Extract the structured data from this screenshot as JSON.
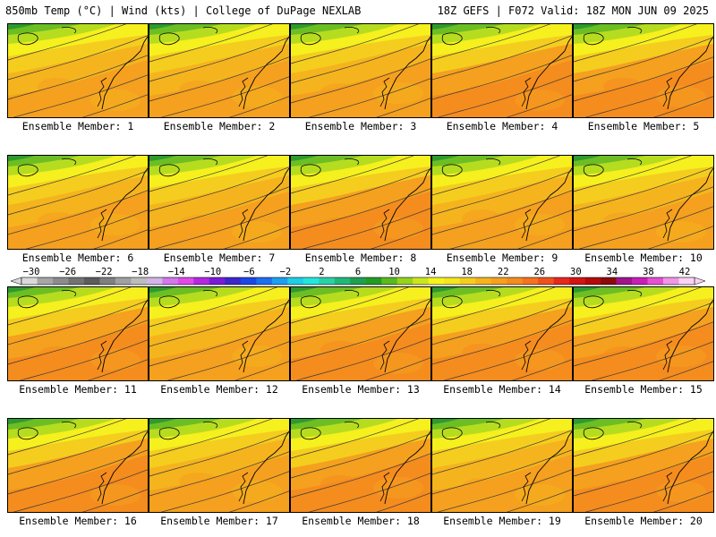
{
  "header": {
    "left": "850mb Temp (°C) | Wind (kts) | College of DuPage NEXLAB",
    "right": "18Z GEFS | F072 Valid: 18Z MON JUN 09 2025"
  },
  "caption_prefix": "Ensemble Member:",
  "members": [
    {
      "id": "1",
      "tint": "mid"
    },
    {
      "id": "2",
      "tint": "mid"
    },
    {
      "id": "3",
      "tint": "mid"
    },
    {
      "id": "4",
      "tint": "warm"
    },
    {
      "id": "5",
      "tint": "warm"
    },
    {
      "id": "6",
      "tint": "mid"
    },
    {
      "id": "7",
      "tint": "mid"
    },
    {
      "id": "8",
      "tint": "warm"
    },
    {
      "id": "9",
      "tint": "mid"
    },
    {
      "id": "10",
      "tint": "mid"
    },
    {
      "id": "11",
      "tint": "warm"
    },
    {
      "id": "12",
      "tint": "mid"
    },
    {
      "id": "13",
      "tint": "warm"
    },
    {
      "id": "14",
      "tint": "warm"
    },
    {
      "id": "15",
      "tint": "warm"
    },
    {
      "id": "16",
      "tint": "warm"
    },
    {
      "id": "17",
      "tint": "mid"
    },
    {
      "id": "18",
      "tint": "warm"
    },
    {
      "id": "19",
      "tint": "mid"
    },
    {
      "id": "20",
      "tint": "warm"
    }
  ],
  "colorbar": {
    "ticks": [
      "−30",
      "−26",
      "−22",
      "−18",
      "−14",
      "−10",
      "−6",
      "−2",
      "2",
      "6",
      "10",
      "14",
      "18",
      "22",
      "26",
      "30",
      "34",
      "38",
      "42"
    ],
    "colors": [
      "#d9d9d9",
      "#a6a6a6",
      "#8c8c8c",
      "#737373",
      "#5c5c5c",
      "#808080",
      "#a0a0a0",
      "#bcbcbc",
      "#d2b4e8",
      "#d278e8",
      "#e04ae8",
      "#b429e0",
      "#7a1cd6",
      "#3c28c8",
      "#1c46e6",
      "#1e6ef0",
      "#1e9ef0",
      "#1ecde6",
      "#23e6dc",
      "#2ad0a8",
      "#20b878",
      "#1ea050",
      "#239c23",
      "#5aba1e",
      "#96d21e",
      "#cbe61e",
      "#f5f51e",
      "#f5e61e",
      "#f5cd1e",
      "#f5b41e",
      "#f5a01e",
      "#f58c1e",
      "#f5731e",
      "#f0501e",
      "#e6281e",
      "#d21414",
      "#b40a0a",
      "#8c0a0a",
      "#a0148c",
      "#c81eb4",
      "#e650d2",
      "#f096e6",
      "#fad2f5"
    ]
  },
  "palette": {
    "green_dark": "#2e9a2e",
    "green": "#6cbe23",
    "lime": "#b6dc20",
    "yellow": "#f5f01e",
    "gold": "#f5cd1e",
    "orange_light": "#f5b41e",
    "orange": "#f5a01e",
    "orange_dark": "#f58c1e"
  }
}
